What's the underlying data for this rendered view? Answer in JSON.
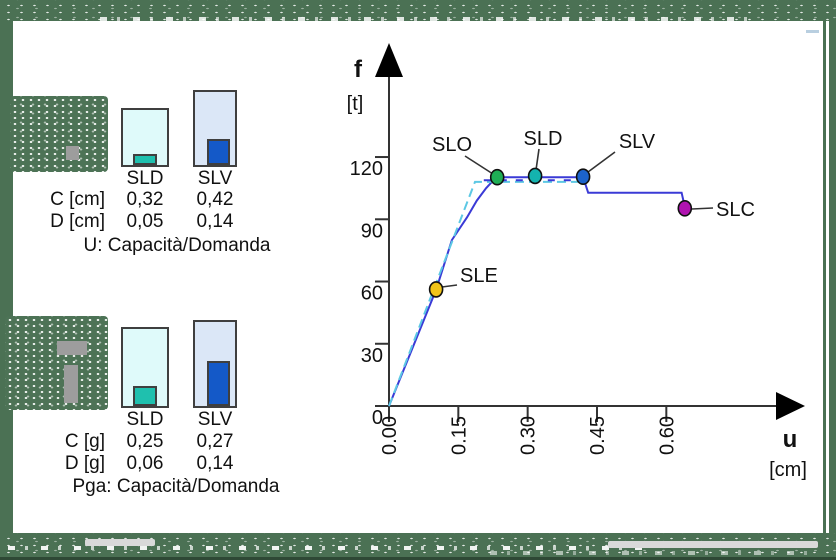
{
  "panels": [
    {
      "id": "displacement",
      "caption": "U: Capacità/Domanda",
      "columns": [
        "SLD",
        "SLV"
      ],
      "rows": [
        {
          "label": "C [cm]",
          "values": [
            "0,32",
            "0,42"
          ]
        },
        {
          "label": "D [cm]",
          "values": [
            "0,05",
            "0,14"
          ]
        }
      ]
    },
    {
      "id": "pga",
      "caption": "Pga: Capacità/Domanda",
      "columns": [
        "SLD",
        "SLV"
      ],
      "rows": [
        {
          "label": "C [g]",
          "values": [
            "0,25",
            "0,27"
          ]
        },
        {
          "label": "D [g]",
          "values": [
            "0,06",
            "0,14"
          ]
        }
      ]
    }
  ],
  "colors": {
    "frame_green": "#4b7154",
    "curve_blue": "#3a3ad6",
    "bilinear_cyan": "#5cc8e4",
    "bar_sld_fill": "#1fc0ae",
    "bar_sld_bg": "#dffafa",
    "bar_slv_fill": "#1459c8",
    "bar_slv_bg": "#dbe7f7",
    "slo_green": "#1fae55",
    "sld_teal": "#14b3af",
    "slv_blue": "#1c63cc",
    "slc_magenta": "#b013b0",
    "sle_yellow": "#f0c419"
  },
  "chart_data": {
    "type": "line",
    "title": "",
    "xlabel": "u",
    "xunit": "[cm]",
    "ylabel": "f",
    "yunit": "[t]",
    "x_ticks": [
      "0.00",
      "0.15",
      "0.30",
      "0.45",
      "0.60"
    ],
    "y_ticks": [
      "0",
      "30",
      "60",
      "90",
      "120"
    ],
    "xlim": [
      0,
      0.72
    ],
    "ylim": [
      0,
      145
    ],
    "grid": false,
    "legend": false,
    "series": [
      {
        "name": "capacity-curve",
        "color": "#3a3ad6",
        "style": "solid",
        "points": [
          [
            0,
            0
          ],
          [
            0.102,
            56
          ],
          [
            0.136,
            80
          ],
          [
            0.169,
            91
          ],
          [
            0.19,
            99
          ],
          [
            0.21,
            105
          ],
          [
            0.225,
            108.6
          ],
          [
            0.234,
            110.3
          ],
          [
            0.42,
            110.3
          ],
          [
            0.431,
            102.8
          ],
          [
            0.633,
            102.8
          ],
          [
            0.637,
            99
          ],
          [
            0.64,
            95.5
          ]
        ]
      },
      {
        "name": "bilinear-approximation",
        "color": "#5cc8e4",
        "style": "dashed",
        "points": [
          [
            0,
            0
          ],
          [
            0.186,
            108
          ],
          [
            0.42,
            108
          ]
        ]
      },
      {
        "name": "bilinear-overlay",
        "color": "#3a3ad6",
        "style": "dashed",
        "points": [
          [
            0.205,
            108.8
          ],
          [
            0.42,
            108.8
          ]
        ]
      }
    ],
    "markers": [
      {
        "label": "SLE",
        "x": 0.102,
        "y": 56.2,
        "color": "#f0c419"
      },
      {
        "label": "SLO",
        "x": 0.234,
        "y": 110.3,
        "color": "#1fae55"
      },
      {
        "label": "SLD",
        "x": 0.316,
        "y": 110.9,
        "color": "#14b3af"
      },
      {
        "label": "SLV",
        "x": 0.42,
        "y": 110.5,
        "color": "#1c63cc"
      },
      {
        "label": "SLC",
        "x": 0.64,
        "y": 95.3,
        "color": "#b013b0"
      }
    ]
  }
}
